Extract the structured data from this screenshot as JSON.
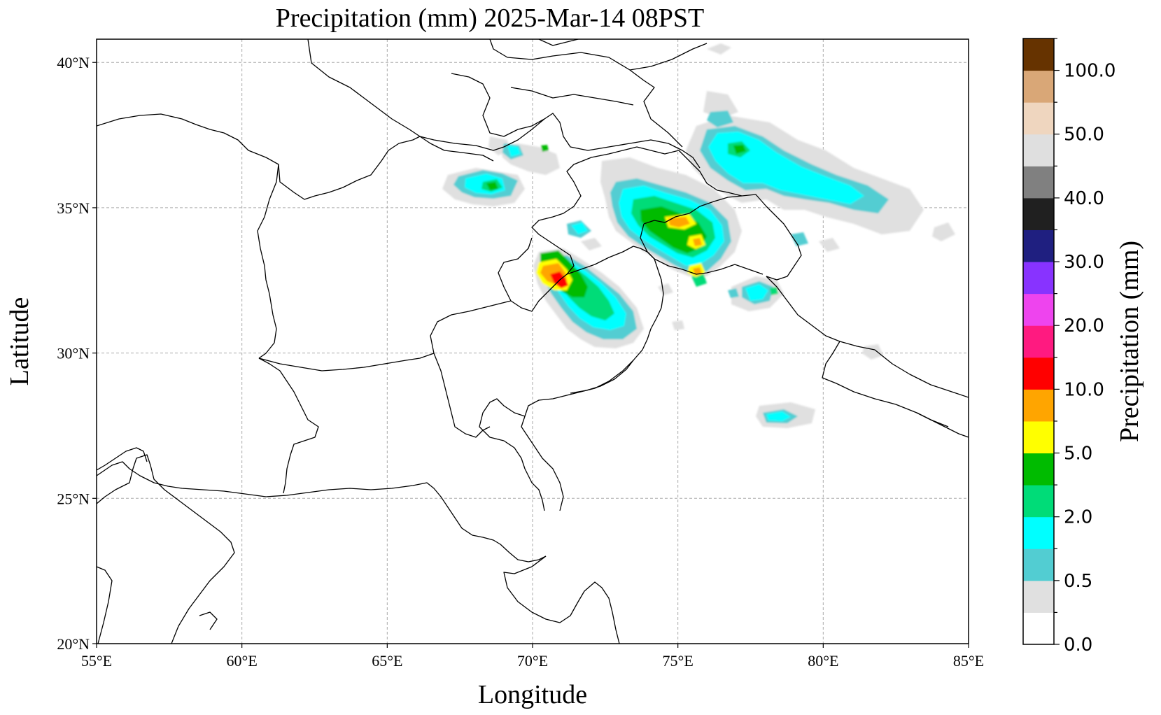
{
  "title": "Precipitation (mm)  2025-Mar-14 08PST",
  "xlabel": "Longitude",
  "ylabel": "Latitude",
  "colorbar_label": "Precipitation (mm)",
  "map": {
    "lon_range": [
      55,
      85
    ],
    "lat_range": [
      20,
      40.8
    ],
    "lon_ticks": [
      55,
      60,
      65,
      70,
      75,
      80,
      85
    ],
    "lon_tick_labels": [
      "55°E",
      "60°E",
      "65°E",
      "70°E",
      "75°E",
      "80°E",
      "85°E"
    ],
    "lat_ticks": [
      20,
      25,
      30,
      35,
      40
    ],
    "lat_tick_labels": [
      "20°N",
      "25°N",
      "30°N",
      "35°N",
      "40°N"
    ],
    "grid": "dashed"
  },
  "colorbar": {
    "levels": [
      0,
      0.25,
      0.5,
      1,
      2,
      3,
      5,
      7.5,
      10,
      15,
      20,
      25,
      30,
      35,
      40,
      45,
      50,
      75,
      100,
      125
    ],
    "colors": [
      "#ffffff",
      "#e0e0e0",
      "#52cdd2",
      "#00ffff",
      "#00dc78",
      "#00bb00",
      "#ffff00",
      "#ffa500",
      "#ff0000",
      "#ff1a80",
      "#ee44ee",
      "#8833ff",
      "#1f1f80",
      "#202020",
      "#808080",
      "#dfdfdf",
      "#efd6bf",
      "#d9a777",
      "#663300"
    ],
    "tick_labels": [
      "0.0",
      "0.5",
      "2.0",
      "5.0",
      "10.0",
      "20.0",
      "30.0",
      "40.0",
      "50.0",
      "100.0"
    ]
  },
  "precip_areas": [
    {
      "label": "",
      "lon": 70.8,
      "lat": 32.3,
      "peak_mm": 10
    },
    {
      "label": "",
      "lon": 75.0,
      "lat": 34.4,
      "peak_mm": 7.5
    },
    {
      "label": "",
      "lon": 75.7,
      "lat": 33.6,
      "peak_mm": 5
    },
    {
      "label": "",
      "lon": 75.7,
      "lat": 32.8,
      "peak_mm": 5
    },
    {
      "label": "",
      "lon": 68.7,
      "lat": 35.4,
      "peak_mm": 3
    },
    {
      "label": "",
      "lon": 70.5,
      "lat": 37.1,
      "peak_mm": 3
    },
    {
      "label": "",
      "lon": 76.8,
      "lat": 37.3,
      "peak_mm": 3
    },
    {
      "label": "",
      "lon": 78.5,
      "lat": 27.6,
      "peak_mm": 1
    }
  ]
}
